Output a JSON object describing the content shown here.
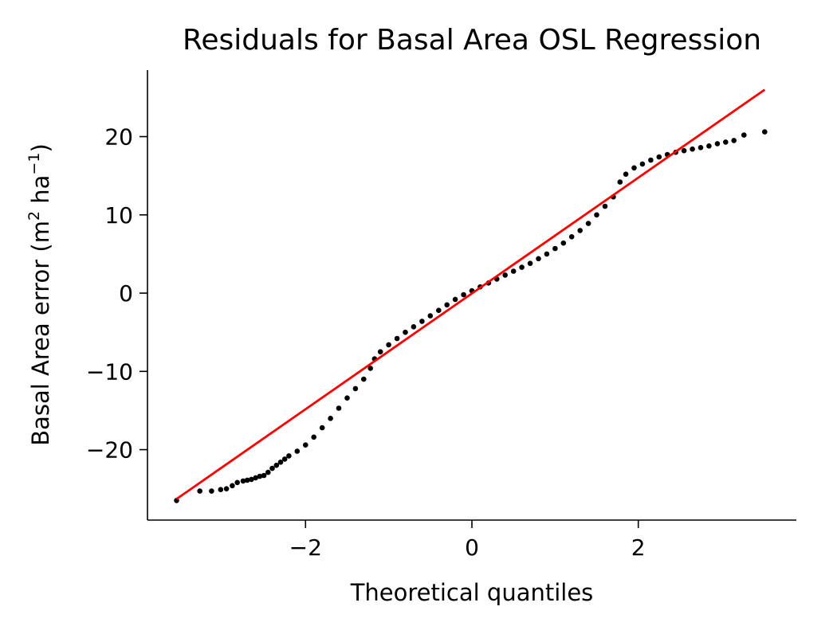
{
  "chart_data": {
    "type": "scatter",
    "title": "Residuals for Basal Area OSL Regression",
    "xlabel": "Theoretical quantiles",
    "ylabel": {
      "prefix": "Basal Area error (m",
      "sup1": "2",
      "middle": " ha",
      "sup2": "−1",
      "suffix": ")"
    },
    "xlim": [
      -3.9,
      3.9
    ],
    "ylim": [
      -29,
      28.5
    ],
    "x_ticks": [
      {
        "value": -2,
        "label": "−2"
      },
      {
        "value": 0,
        "label": "0"
      },
      {
        "value": 2,
        "label": "2"
      }
    ],
    "y_ticks": [
      {
        "value": -20,
        "label": "−20"
      },
      {
        "value": -10,
        "label": "−10"
      },
      {
        "value": 0,
        "label": "0"
      },
      {
        "value": 10,
        "label": "10"
      },
      {
        "value": 20,
        "label": "20"
      }
    ],
    "grid": false,
    "series": [
      {
        "kind": "points",
        "color": "#000000",
        "points": [
          [
            -3.55,
            -26.5
          ],
          [
            -3.27,
            -25.3
          ],
          [
            -3.13,
            -25.3
          ],
          [
            -3.02,
            -25.1
          ],
          [
            -2.95,
            -25.0
          ],
          [
            -2.88,
            -24.6
          ],
          [
            -2.82,
            -24.2
          ],
          [
            -2.75,
            -24.0
          ],
          [
            -2.7,
            -23.9
          ],
          [
            -2.65,
            -23.8
          ],
          [
            -2.6,
            -23.6
          ],
          [
            -2.55,
            -23.4
          ],
          [
            -2.5,
            -23.3
          ],
          [
            -2.45,
            -22.9
          ],
          [
            -2.4,
            -22.4
          ],
          [
            -2.35,
            -22.0
          ],
          [
            -2.3,
            -21.6
          ],
          [
            -2.25,
            -21.2
          ],
          [
            -2.2,
            -20.8
          ],
          [
            -2.1,
            -20.2
          ],
          [
            -2.0,
            -19.4
          ],
          [
            -1.9,
            -18.4
          ],
          [
            -1.8,
            -17.2
          ],
          [
            -1.7,
            -16.0
          ],
          [
            -1.6,
            -14.7
          ],
          [
            -1.5,
            -13.4
          ],
          [
            -1.4,
            -12.2
          ],
          [
            -1.3,
            -11.0
          ],
          [
            -1.22,
            -9.6
          ],
          [
            -1.17,
            -8.4
          ],
          [
            -1.1,
            -7.5
          ],
          [
            -1.0,
            -6.6
          ],
          [
            -0.9,
            -5.8
          ],
          [
            -0.8,
            -5.0
          ],
          [
            -0.7,
            -4.3
          ],
          [
            -0.6,
            -3.6
          ],
          [
            -0.5,
            -2.9
          ],
          [
            -0.4,
            -2.2
          ],
          [
            -0.3,
            -1.5
          ],
          [
            -0.2,
            -0.8
          ],
          [
            -0.1,
            -0.2
          ],
          [
            0.0,
            0.3
          ],
          [
            0.1,
            0.8
          ],
          [
            0.2,
            1.3
          ],
          [
            0.3,
            1.8
          ],
          [
            0.4,
            2.3
          ],
          [
            0.5,
            2.8
          ],
          [
            0.6,
            3.3
          ],
          [
            0.7,
            3.8
          ],
          [
            0.8,
            4.4
          ],
          [
            0.9,
            5.0
          ],
          [
            1.0,
            5.7
          ],
          [
            1.1,
            6.4
          ],
          [
            1.2,
            7.2
          ],
          [
            1.3,
            8.0
          ],
          [
            1.4,
            8.9
          ],
          [
            1.5,
            10.0
          ],
          [
            1.6,
            11.1
          ],
          [
            1.7,
            12.3
          ],
          [
            1.78,
            14.2
          ],
          [
            1.85,
            15.2
          ],
          [
            1.95,
            16.0
          ],
          [
            2.05,
            16.5
          ],
          [
            2.15,
            17.0
          ],
          [
            2.25,
            17.4
          ],
          [
            2.35,
            17.7
          ],
          [
            2.45,
            18.0
          ],
          [
            2.55,
            18.2
          ],
          [
            2.65,
            18.4
          ],
          [
            2.75,
            18.6
          ],
          [
            2.85,
            18.8
          ],
          [
            2.95,
            19.1
          ],
          [
            3.05,
            19.3
          ],
          [
            3.15,
            19.5
          ],
          [
            3.27,
            20.2
          ],
          [
            3.52,
            20.6
          ]
        ]
      },
      {
        "kind": "line",
        "color": "#ff0000",
        "points": [
          [
            -3.55,
            -26.3
          ],
          [
            3.52,
            26.0
          ]
        ]
      }
    ]
  }
}
